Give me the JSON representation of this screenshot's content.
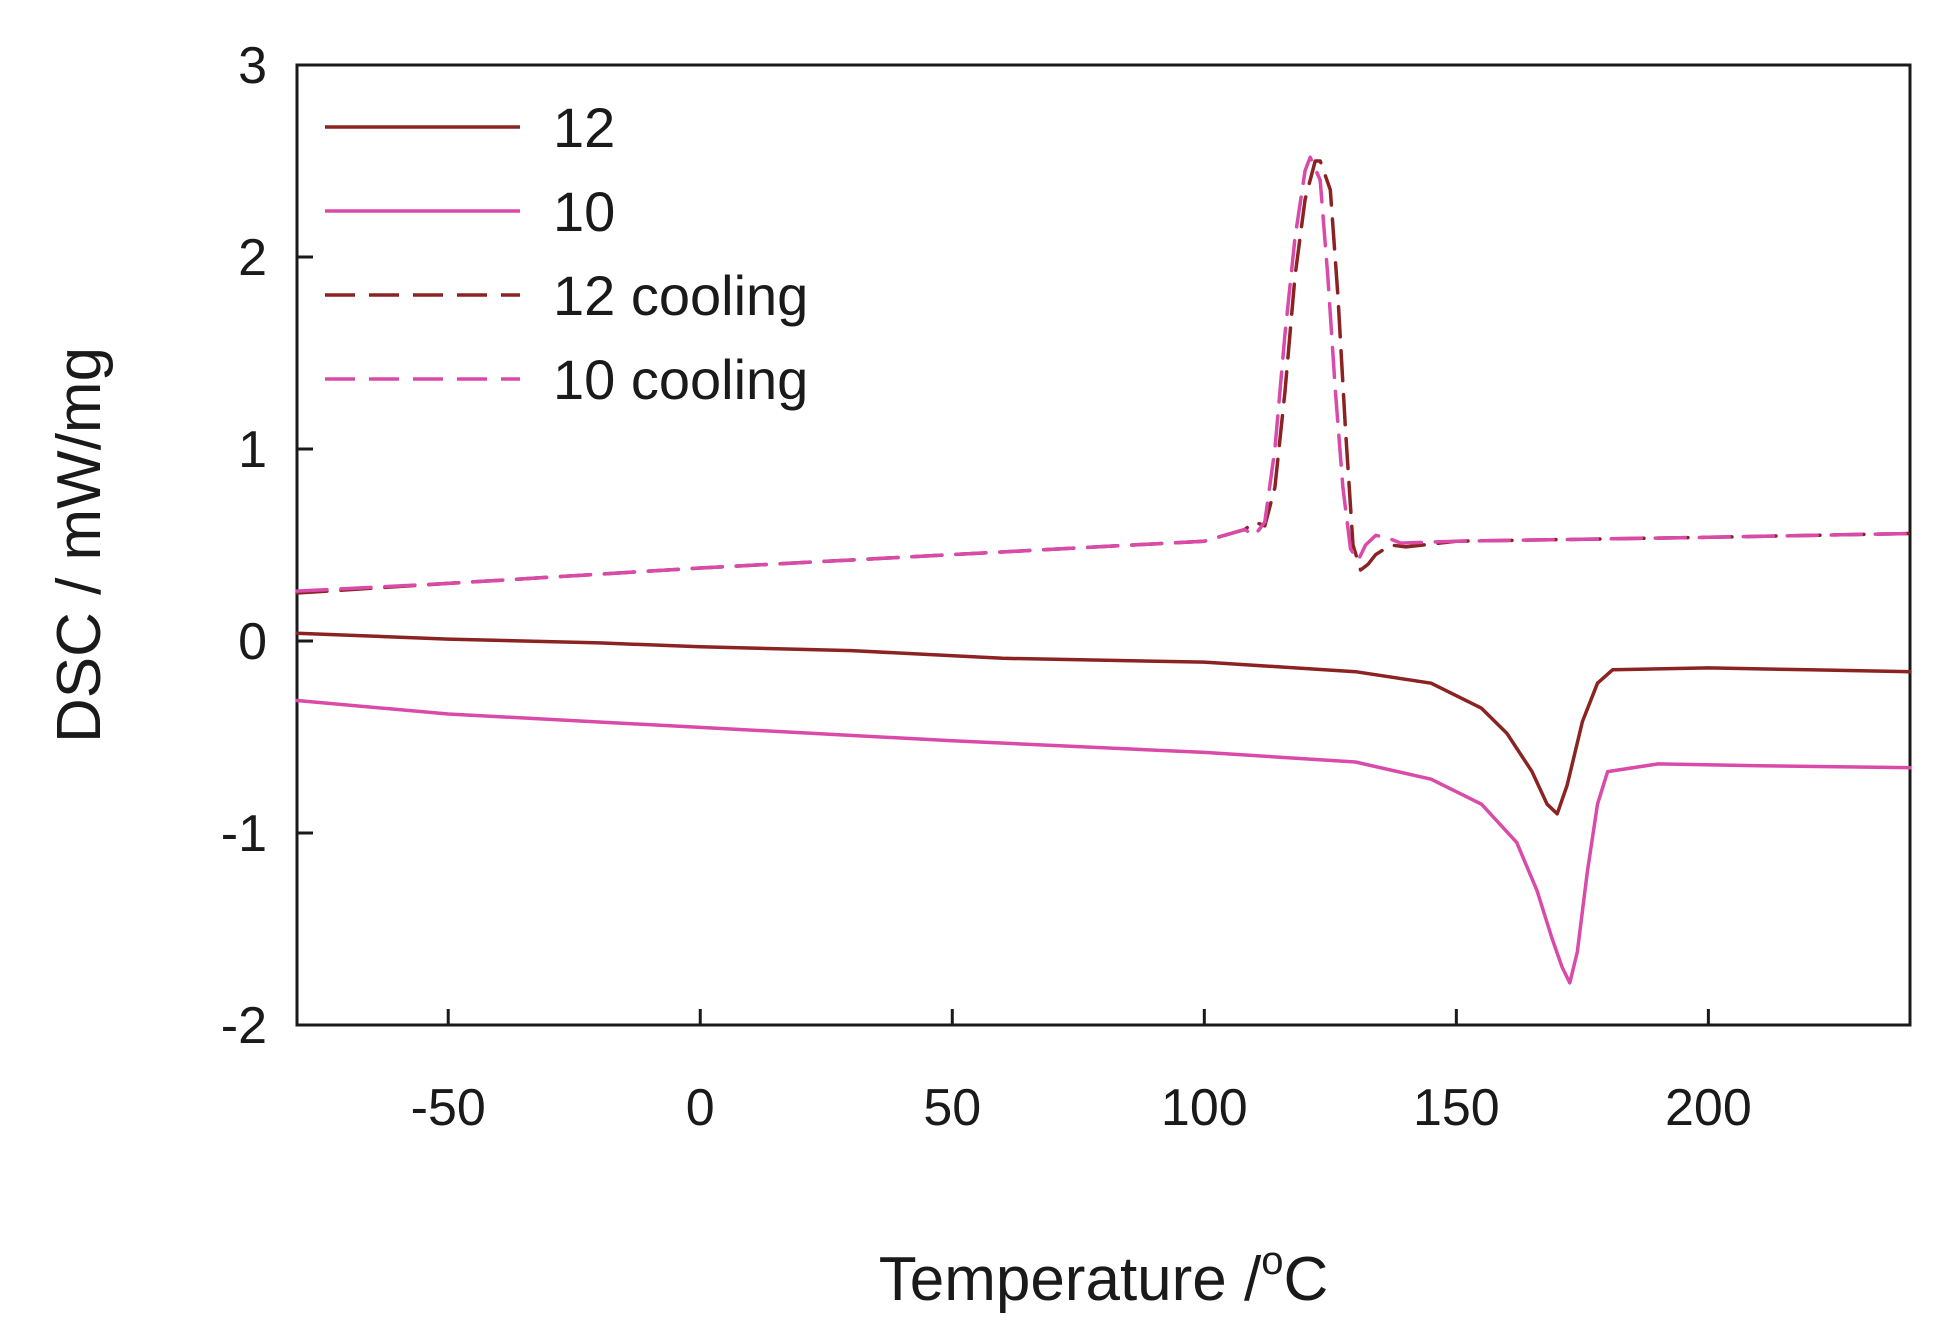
{
  "chart_data": {
    "type": "line",
    "title": "",
    "xlabel": "Temperature /",
    "xlabel_sup": "o",
    "xlabel_unit": "C",
    "ylabel": "DSC / mW/mg",
    "xlim": [
      -80,
      240
    ],
    "ylim": [
      -2,
      3
    ],
    "xticks": [
      -50,
      0,
      50,
      100,
      150,
      200
    ],
    "xtick_labels": [
      "-50",
      "0",
      "50",
      "100",
      "150",
      "200"
    ],
    "yticks": [
      -2,
      -1,
      0,
      1,
      2,
      3
    ],
    "ytick_labels": [
      "-2",
      "-1",
      "0",
      "1",
      "2",
      "3"
    ],
    "grid": false,
    "legend_position": "top-left",
    "series": [
      {
        "name": "12",
        "color": "#8b2323",
        "dash": "solid",
        "x": [
          -80,
          -50,
          -20,
          0,
          30,
          60,
          100,
          130,
          145,
          155,
          160,
          165,
          168,
          170,
          172,
          175,
          178,
          181,
          200,
          220,
          240
        ],
        "y": [
          0.04,
          0.01,
          -0.01,
          -0.03,
          -0.05,
          -0.09,
          -0.11,
          -0.16,
          -0.22,
          -0.35,
          -0.48,
          -0.68,
          -0.85,
          -0.9,
          -0.75,
          -0.42,
          -0.22,
          -0.15,
          -0.14,
          -0.15,
          -0.16
        ]
      },
      {
        "name": "10",
        "color": "#d94aa9",
        "dash": "solid",
        "x": [
          -80,
          -50,
          0,
          50,
          100,
          130,
          145,
          155,
          162,
          166,
          169,
          171,
          172.5,
          174,
          176,
          178,
          180,
          190,
          210,
          240
        ],
        "y": [
          -0.31,
          -0.38,
          -0.45,
          -0.52,
          -0.58,
          -0.63,
          -0.72,
          -0.85,
          -1.05,
          -1.3,
          -1.55,
          -1.7,
          -1.78,
          -1.62,
          -1.2,
          -0.85,
          -0.68,
          -0.64,
          -0.65,
          -0.66
        ]
      },
      {
        "name": "12 cooling",
        "color": "#8b2323",
        "dash": "dashed",
        "x": [
          -80,
          -50,
          0,
          50,
          100,
          108,
          110,
          112,
          114,
          116,
          118,
          120,
          122,
          123,
          125,
          126.5,
          128,
          129.5,
          131,
          132.5,
          134,
          137,
          140,
          150,
          200,
          240
        ],
        "y": [
          0.25,
          0.3,
          0.38,
          0.45,
          0.52,
          0.58,
          0.62,
          0.6,
          0.8,
          1.3,
          1.9,
          2.3,
          2.5,
          2.5,
          2.35,
          1.8,
          1.1,
          0.5,
          0.37,
          0.4,
          0.45,
          0.5,
          0.49,
          0.52,
          0.54,
          0.56
        ]
      },
      {
        "name": "10 cooling",
        "color": "#d94aa9",
        "dash": "dashed",
        "x": [
          -80,
          -50,
          0,
          50,
          100,
          108,
          110,
          112,
          114,
          116,
          118,
          120,
          121,
          123,
          124.5,
          126,
          127.5,
          129,
          130.5,
          132,
          134,
          136,
          139,
          150,
          200,
          240
        ],
        "y": [
          0.26,
          0.3,
          0.38,
          0.45,
          0.52,
          0.58,
          0.55,
          0.62,
          1.0,
          1.6,
          2.1,
          2.45,
          2.52,
          2.4,
          1.9,
          1.3,
          0.8,
          0.48,
          0.42,
          0.5,
          0.55,
          0.54,
          0.51,
          0.52,
          0.54,
          0.56
        ]
      }
    ]
  }
}
